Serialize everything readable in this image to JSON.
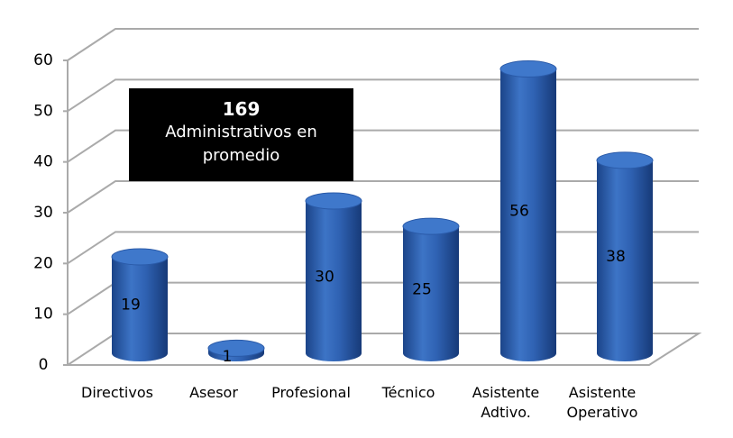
{
  "chart_data": {
    "type": "cylinder-bar",
    "categories": [
      "Directivos",
      "Asesor",
      "Profesional",
      "Técnico",
      "Asistente Adtivo.",
      "Asistente Operativo"
    ],
    "values": [
      19,
      1,
      30,
      25,
      56,
      38
    ],
    "color": "#2f62b3",
    "ylim": [
      0,
      60
    ],
    "yticks": [
      0,
      10,
      20,
      30,
      40,
      50,
      60
    ],
    "grid": true,
    "annotation": {
      "title": "169",
      "text": "Administrativos en promedio"
    }
  }
}
